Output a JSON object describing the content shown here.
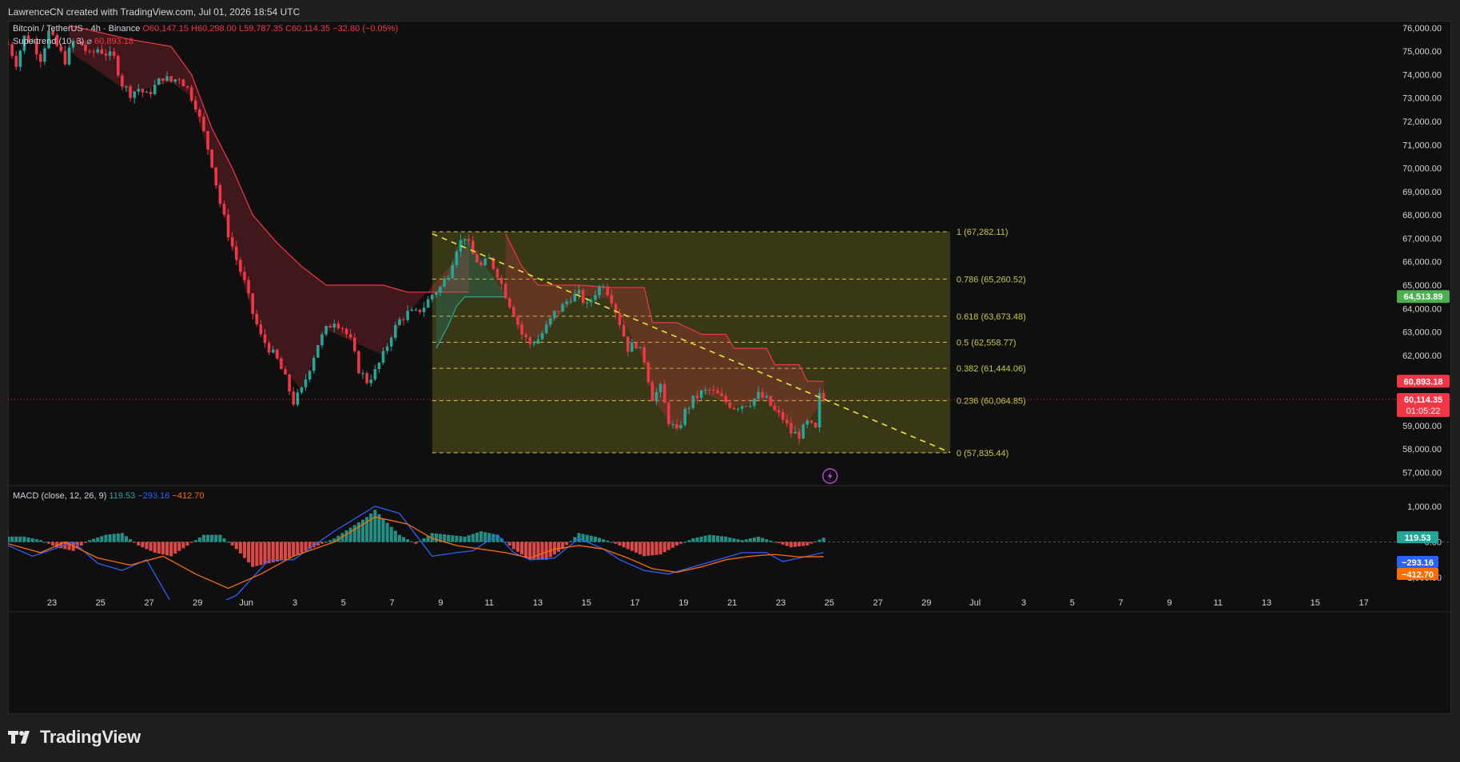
{
  "header": {
    "credit": "LawrenceCN created with TradingView.com, Jul 01, 2026 18:54 UTC"
  },
  "legend": {
    "symbol": "Bitcoin / TetherUS · 4h · Binance",
    "open": "O60,147.15",
    "high": "H60,298.00",
    "low": "L59,787.35",
    "close": "C60,114.35",
    "change": "−32.80 (−0.05%)",
    "supertrend_label": "Supertrend (10, 3)",
    "supertrend_dots": "⌀",
    "supertrend_value": "60,893.18",
    "macd_label": "MACD (close, 12, 26, 9)",
    "macd_hist": "119.53",
    "macd_line": "−293.16",
    "macd_signal": "−412.70"
  },
  "brand": {
    "name": "TradingView"
  },
  "colors": {
    "up": "#26a69a",
    "down": "#f23645",
    "fib": "#c8c84a",
    "macd_line": "#2962ff",
    "signal_line": "#ff6d00"
  },
  "chart_data": {
    "type": "candlestick",
    "symbol": "BTCUSDT",
    "interval": "4h",
    "price_axis": {
      "range": [
        56500,
        76300
      ],
      "ticks": [
        "76,000.00",
        "75,000.00",
        "74,000.00",
        "73,000.00",
        "72,000.00",
        "71,000.00",
        "70,000.00",
        "69,000.00",
        "68,000.00",
        "67,000.00",
        "66,000.00",
        "65,000.00",
        "64,000.00",
        "63,000.00",
        "62,000.00",
        "61,000.00",
        "60,000.00",
        "59,000.00",
        "58,000.00",
        "57,000.00"
      ]
    },
    "time_axis": {
      "labels": [
        "23",
        "25",
        "27",
        "29",
        "Jun",
        "3",
        "5",
        "7",
        "9",
        "11",
        "13",
        "15",
        "17",
        "19",
        "21",
        "23",
        "25",
        "27",
        "29",
        "Jul",
        "3",
        "5",
        "7",
        "9",
        "11",
        "13",
        "15",
        "17"
      ]
    },
    "price_points": [
      [
        0,
        75300
      ],
      [
        2,
        74500
      ],
      [
        4,
        75600
      ],
      [
        6,
        75400
      ],
      [
        8,
        74700
      ],
      [
        10,
        75800
      ],
      [
        12,
        75200
      ],
      [
        14,
        74600
      ],
      [
        16,
        75400
      ],
      [
        18,
        75300
      ],
      [
        20,
        74800
      ],
      [
        22,
        75100
      ],
      [
        26,
        74700
      ],
      [
        28,
        73600
      ],
      [
        30,
        73200
      ],
      [
        32,
        73400
      ],
      [
        34,
        73100
      ],
      [
        36,
        73500
      ],
      [
        38,
        73900
      ],
      [
        40,
        73700
      ],
      [
        42,
        73900
      ],
      [
        44,
        73400
      ],
      [
        46,
        72700
      ],
      [
        48,
        71500
      ],
      [
        50,
        70200
      ],
      [
        52,
        68500
      ],
      [
        54,
        67200
      ],
      [
        56,
        66100
      ],
      [
        58,
        65100
      ],
      [
        60,
        63800
      ],
      [
        62,
        62800
      ],
      [
        64,
        62300
      ],
      [
        66,
        61800
      ],
      [
        68,
        61000
      ],
      [
        70,
        60000
      ],
      [
        72,
        60500
      ],
      [
        74,
        61500
      ],
      [
        76,
        62500
      ],
      [
        78,
        63100
      ],
      [
        80,
        63500
      ],
      [
        82,
        63200
      ],
      [
        84,
        62600
      ],
      [
        86,
        61400
      ],
      [
        88,
        60900
      ],
      [
        90,
        61300
      ],
      [
        92,
        62000
      ],
      [
        94,
        62900
      ],
      [
        96,
        63500
      ],
      [
        98,
        63800
      ],
      [
        100,
        63800
      ],
      [
        102,
        64100
      ],
      [
        104,
        64600
      ],
      [
        106,
        64900
      ],
      [
        108,
        65500
      ],
      [
        110,
        66600
      ],
      [
        112,
        67100
      ],
      [
        114,
        66300
      ],
      [
        116,
        65800
      ],
      [
        118,
        66100
      ],
      [
        120,
        65500
      ],
      [
        122,
        64600
      ],
      [
        124,
        63800
      ],
      [
        126,
        62900
      ],
      [
        128,
        62500
      ],
      [
        130,
        62700
      ],
      [
        132,
        63200
      ],
      [
        134,
        63800
      ],
      [
        136,
        64100
      ],
      [
        138,
        64500
      ],
      [
        140,
        64600
      ],
      [
        142,
        64100
      ],
      [
        144,
        64700
      ],
      [
        146,
        65100
      ],
      [
        148,
        64400
      ],
      [
        150,
        63400
      ],
      [
        152,
        62300
      ],
      [
        154,
        62500
      ],
      [
        156,
        61800
      ],
      [
        158,
        60200
      ],
      [
        160,
        60600
      ],
      [
        162,
        59200
      ],
      [
        164,
        58700
      ],
      [
        166,
        59600
      ],
      [
        168,
        60100
      ],
      [
        170,
        60400
      ],
      [
        172,
        60500
      ],
      [
        174,
        60300
      ],
      [
        176,
        60000
      ],
      [
        178,
        59800
      ],
      [
        180,
        59900
      ],
      [
        182,
        60000
      ],
      [
        184,
        60300
      ],
      [
        186,
        60100
      ],
      [
        188,
        59600
      ],
      [
        190,
        59300
      ],
      [
        192,
        58700
      ],
      [
        194,
        58600
      ],
      [
        196,
        59100
      ],
      [
        198,
        58800
      ],
      [
        199,
        60250
      ],
      [
        200,
        60114
      ]
    ],
    "last_candle_index": 200,
    "x_axis_span": [
      0,
      290
    ],
    "supertrend": {
      "value": 60893.18,
      "segments": [
        {
          "direction": "down",
          "points": [
            [
              15,
              76100
            ],
            [
              30,
              75500
            ],
            [
              40,
              75200
            ],
            [
              45,
              74000
            ],
            [
              50,
              71700
            ],
            [
              55,
              70000
            ],
            [
              60,
              68000
            ],
            [
              66,
              66800
            ],
            [
              72,
              65800
            ],
            [
              78,
              65000
            ],
            [
              92,
              65000
            ],
            [
              98,
              64700
            ],
            [
              113,
              64700
            ]
          ]
        },
        {
          "direction": "up",
          "points": [
            [
              105,
              62300
            ],
            [
              108,
              63300
            ],
            [
              110,
              64100
            ],
            [
              112,
              64500
            ],
            [
              122,
              64500
            ]
          ]
        },
        {
          "direction": "down",
          "points": [
            [
              122,
              67200
            ],
            [
              126,
              65800
            ],
            [
              130,
              65000
            ],
            [
              140,
              65000
            ],
            [
              148,
              64900
            ],
            [
              156,
              64900
            ],
            [
              158,
              63400
            ],
            [
              164,
              63400
            ],
            [
              170,
              62900
            ],
            [
              176,
              62900
            ],
            [
              178,
              62300
            ],
            [
              186,
              62300
            ],
            [
              188,
              61600
            ],
            [
              194,
              61600
            ],
            [
              196,
              60893
            ],
            [
              200,
              60893
            ]
          ]
        }
      ]
    },
    "fibonacci": {
      "range_x": [
        104,
        231
      ],
      "levels": [
        {
          "ratio": "1",
          "price": 67282.11,
          "label": "1 (67,282.11)"
        },
        {
          "ratio": "0.786",
          "price": 65260.52,
          "label": "0.786 (65,260.52)"
        },
        {
          "ratio": "0.618",
          "price": 63673.48,
          "label": "0.618 (63,673.48)"
        },
        {
          "ratio": "0.5",
          "price": 62558.77,
          "label": "0.5 (62,558.77)"
        },
        {
          "ratio": "0.382",
          "price": 61444.06,
          "label": "0.382 (61,444.06)"
        },
        {
          "ratio": "0.236",
          "price": 60064.85,
          "label": "0.236 (60,064.85)"
        },
        {
          "ratio": "0",
          "price": 57835.44,
          "label": "0 (57,835.44)"
        }
      ]
    },
    "trendline": [
      [
        104,
        67200
      ],
      [
        231,
        57850
      ]
    ],
    "price_badges": [
      {
        "text": "64,513.89",
        "price": 64513.89,
        "color": "#4caf50"
      },
      {
        "text": "60,893.18",
        "price": 60893.18,
        "color": "#f23645"
      },
      {
        "text": "60,114.35",
        "price": 60114.35,
        "color": "#f23645",
        "sub": "01:05:22"
      }
    ],
    "macd": {
      "axis_ticks": [
        "1,000.00",
        "0.00",
        "−1,000.00"
      ],
      "range": [
        -1400,
        1400
      ],
      "histogram": [
        [
          0,
          150
        ],
        [
          4,
          150
        ],
        [
          8,
          50
        ],
        [
          12,
          -150
        ],
        [
          16,
          -250
        ],
        [
          20,
          50
        ],
        [
          24,
          200
        ],
        [
          28,
          250
        ],
        [
          32,
          -100
        ],
        [
          36,
          -300
        ],
        [
          40,
          -400
        ],
        [
          44,
          -100
        ],
        [
          48,
          200
        ],
        [
          52,
          200
        ],
        [
          56,
          -200
        ],
        [
          60,
          -700
        ],
        [
          64,
          -600
        ],
        [
          68,
          -500
        ],
        [
          72,
          -300
        ],
        [
          76,
          -100
        ],
        [
          80,
          100
        ],
        [
          84,
          400
        ],
        [
          88,
          700
        ],
        [
          90,
          900
        ],
        [
          92,
          650
        ],
        [
          96,
          200
        ],
        [
          100,
          -50
        ],
        [
          104,
          250
        ],
        [
          108,
          200
        ],
        [
          112,
          150
        ],
        [
          116,
          300
        ],
        [
          120,
          200
        ],
        [
          124,
          -200
        ],
        [
          128,
          -500
        ],
        [
          132,
          -500
        ],
        [
          136,
          -200
        ],
        [
          140,
          250
        ],
        [
          144,
          150
        ],
        [
          148,
          0
        ],
        [
          152,
          -200
        ],
        [
          156,
          -400
        ],
        [
          160,
          -350
        ],
        [
          164,
          -100
        ],
        [
          168,
          100
        ],
        [
          172,
          200
        ],
        [
          176,
          150
        ],
        [
          180,
          50
        ],
        [
          184,
          150
        ],
        [
          188,
          0
        ],
        [
          192,
          -150
        ],
        [
          196,
          -100
        ],
        [
          200,
          120
        ]
      ],
      "macd_line": [
        [
          0,
          -100
        ],
        [
          6,
          -400
        ],
        [
          10,
          -250
        ],
        [
          16,
          0
        ],
        [
          22,
          -600
        ],
        [
          28,
          -800
        ],
        [
          34,
          -500
        ],
        [
          40,
          -1700
        ],
        [
          46,
          -2000
        ],
        [
          56,
          -1500
        ],
        [
          64,
          -500
        ],
        [
          70,
          -500
        ],
        [
          80,
          300
        ],
        [
          90,
          1000
        ],
        [
          96,
          800
        ],
        [
          100,
          200
        ],
        [
          104,
          -400
        ],
        [
          110,
          -300
        ],
        [
          114,
          -250
        ],
        [
          120,
          200
        ],
        [
          124,
          -300
        ],
        [
          128,
          -500
        ],
        [
          134,
          -450
        ],
        [
          140,
          100
        ],
        [
          146,
          -200
        ],
        [
          150,
          -500
        ],
        [
          156,
          -800
        ],
        [
          162,
          -900
        ],
        [
          168,
          -700
        ],
        [
          174,
          -500
        ],
        [
          180,
          -300
        ],
        [
          186,
          -300
        ],
        [
          190,
          -550
        ],
        [
          196,
          -400
        ],
        [
          200,
          -293
        ]
      ],
      "signal_line": [
        [
          0,
          -50
        ],
        [
          8,
          -300
        ],
        [
          14,
          0
        ],
        [
          22,
          -450
        ],
        [
          30,
          -650
        ],
        [
          38,
          -400
        ],
        [
          46,
          -900
        ],
        [
          54,
          -1300
        ],
        [
          62,
          -900
        ],
        [
          70,
          -400
        ],
        [
          80,
          0
        ],
        [
          90,
          700
        ],
        [
          98,
          500
        ],
        [
          104,
          100
        ],
        [
          110,
          -100
        ],
        [
          116,
          -200
        ],
        [
          122,
          -300
        ],
        [
          128,
          -450
        ],
        [
          134,
          -200
        ],
        [
          140,
          -100
        ],
        [
          146,
          -200
        ],
        [
          152,
          -450
        ],
        [
          158,
          -750
        ],
        [
          164,
          -850
        ],
        [
          170,
          -700
        ],
        [
          176,
          -500
        ],
        [
          182,
          -400
        ],
        [
          188,
          -350
        ],
        [
          194,
          -420
        ],
        [
          200,
          -413
        ]
      ],
      "badges": [
        {
          "text": "119.53",
          "value": 119.53,
          "color": "#26a69a"
        },
        {
          "text": "−293.16",
          "value": -293.16,
          "color": "#2962ff"
        },
        {
          "text": "−412.70",
          "value": -412.7,
          "color": "#ff6d00"
        }
      ]
    }
  }
}
